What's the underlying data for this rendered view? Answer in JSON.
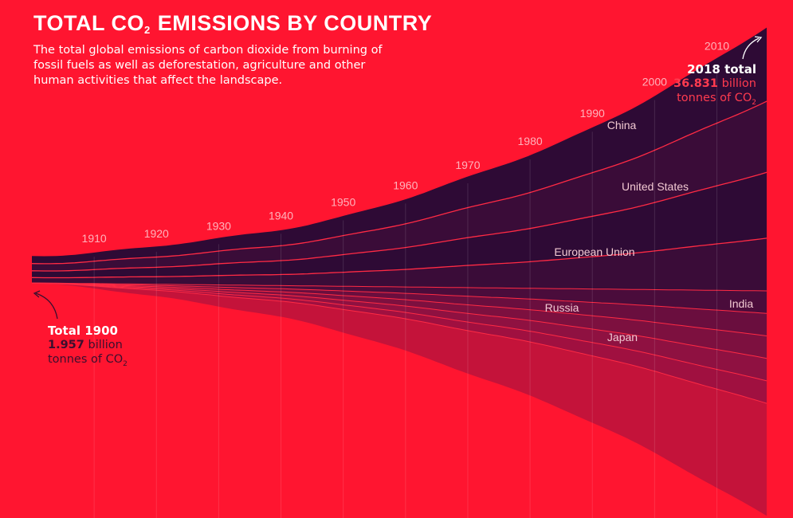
{
  "title": {
    "main": "TOTAL CO",
    "sub": "2",
    "rest": " EMISSIONS BY COUNTRY"
  },
  "subtitle": "The total global emissions of carbon dioxide from burning of fossil fuels as well as deforestation, agriculture and other human activities that affect the landscape.",
  "callouts": {
    "end": {
      "heading": "2018 total",
      "value": "36.831",
      "unit": " billion",
      "unit2": "tonnes of CO",
      "unit2_sub": "2"
    },
    "start": {
      "heading": "Total 1900",
      "value": "1.957",
      "unit": " billion",
      "unit2": "tonnes of CO",
      "unit2_sub": "2"
    }
  },
  "colors": {
    "background": "#FF1530",
    "upper_stream": "#2E0A35",
    "upper_stream_alt": "#3A0C38",
    "lower_stream": "#A01040",
    "lower_stream_light": "#C4133A",
    "separator": "#FF2A44",
    "year_label": "#FFB3BC",
    "country_label": "#F2C9D2"
  },
  "chart_data": {
    "type": "area",
    "x_axis": "year",
    "y_unit": "billion tonnes of CO2",
    "year_ticks": [
      1910,
      1920,
      1930,
      1940,
      1950,
      1960,
      1970,
      1980,
      1990,
      2000,
      2010
    ],
    "totals": [
      {
        "year": 1900,
        "value": 1.957
      },
      {
        "year": 2018,
        "value": 36.831
      }
    ],
    "series_labels": [
      "China",
      "United States",
      "European Union",
      "Russia",
      "Japan",
      "India"
    ],
    "x_range": [
      1900,
      2018
    ]
  }
}
